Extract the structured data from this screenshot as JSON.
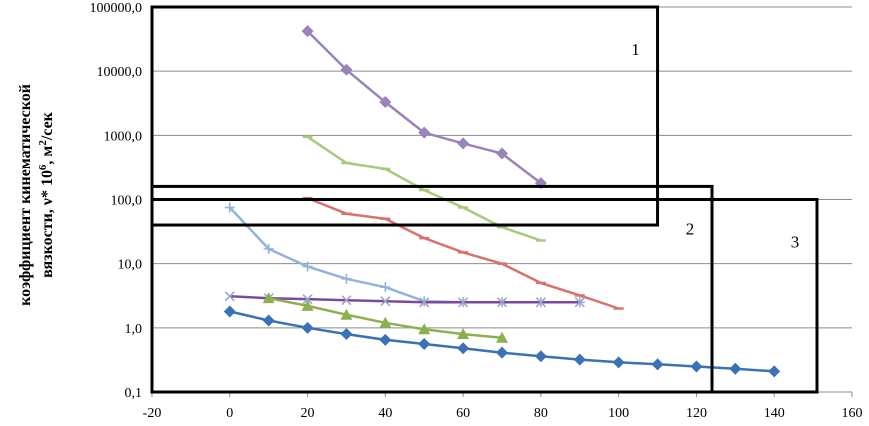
{
  "chart_data": {
    "type": "line",
    "title": "",
    "xlabel": "",
    "ylabel_line1": "коэффициент кинематической",
    "ylabel_line2": "вязкости, ν* 10",
    "ylabel_sup1": "6",
    "ylabel_mid": ", м",
    "ylabel_sup2": "2",
    "ylabel_end": "/сек",
    "xlim": [
      -20,
      160
    ],
    "ylim": [
      0.1,
      100000
    ],
    "y_scale": "log",
    "x_ticks": [
      "-20",
      "0",
      "20",
      "40",
      "60",
      "80",
      "100",
      "120",
      "140",
      "160"
    ],
    "y_ticks": [
      "0,1",
      "1,0",
      "10,0",
      "100,0",
      "1000,0",
      "10000,0",
      "100000,0"
    ],
    "grid": "horizontal",
    "series": [
      {
        "color": "#9b82b9",
        "marker": "diamond",
        "x": [
          20,
          30,
          40,
          50,
          60,
          70,
          80
        ],
        "y": [
          42000,
          10500,
          3300,
          1100,
          750,
          520,
          180
        ]
      },
      {
        "color": "#a9c97c",
        "marker": "dash",
        "x": [
          20,
          30,
          40,
          50,
          60,
          70,
          80
        ],
        "y": [
          950,
          370,
          300,
          140,
          75,
          37,
          23
        ]
      },
      {
        "color": "#d9716d",
        "marker": "dash",
        "x": [
          20,
          30,
          40,
          50,
          60,
          70,
          80,
          90,
          100
        ],
        "y": [
          105,
          60,
          50,
          25,
          15,
          10,
          5,
          3.2,
          2
        ]
      },
      {
        "color": "#93b3d9",
        "marker": "plus",
        "x": [
          0,
          10,
          20,
          30,
          40,
          50,
          60,
          70,
          80,
          90
        ],
        "y": [
          75,
          17,
          9,
          5.8,
          4.3,
          2.6,
          2.5,
          2.5,
          2.5,
          2.5
        ]
      },
      {
        "color": "#7b4a9e",
        "marker": "x",
        "x": [
          0,
          10,
          20,
          30,
          40,
          50,
          60,
          70,
          80,
          90
        ],
        "y": [
          3.1,
          2.9,
          2.8,
          2.7,
          2.6,
          2.5,
          2.5,
          2.5,
          2.5,
          2.5
        ]
      },
      {
        "color": "#8db04f",
        "marker": "triangle",
        "x": [
          10,
          20,
          30,
          40,
          50,
          60,
          70
        ],
        "y": [
          2.9,
          2.2,
          1.6,
          1.2,
          0.95,
          0.8,
          0.7
        ]
      },
      {
        "color": "#3a72b5",
        "marker": "diamond",
        "x": [
          0,
          10,
          20,
          30,
          40,
          50,
          60,
          70,
          80,
          90,
          100,
          110,
          120,
          130,
          140
        ],
        "y": [
          1.8,
          1.3,
          1.0,
          0.8,
          0.65,
          0.56,
          0.48,
          0.41,
          0.36,
          0.32,
          0.29,
          0.27,
          0.25,
          0.23,
          0.21
        ]
      }
    ],
    "regions": [
      {
        "label": "1",
        "x": [
          -20,
          110
        ],
        "y": [
          40,
          100000
        ]
      },
      {
        "label": "2",
        "x": [
          -20,
          124
        ],
        "y": [
          0.1,
          160
        ]
      },
      {
        "label": "3",
        "x": [
          -20,
          151
        ],
        "y": [
          0.1,
          100
        ]
      }
    ]
  }
}
